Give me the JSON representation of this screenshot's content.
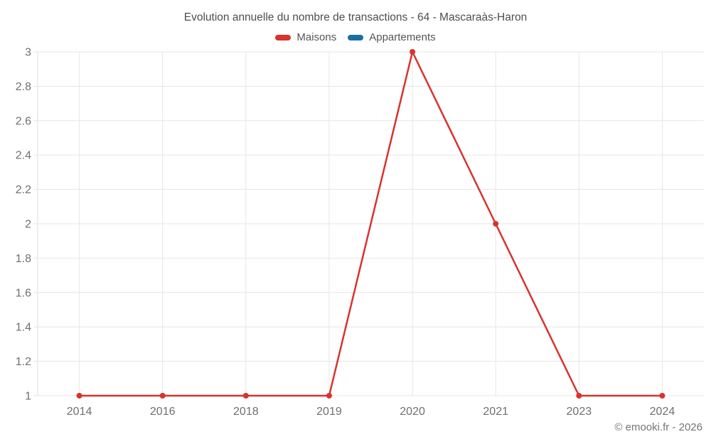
{
  "title": "Evolution annuelle du nombre de transactions - 64 - Mascaraàs-Haron",
  "legend": {
    "items": [
      {
        "label": "Maisons",
        "color": "#d8332e"
      },
      {
        "label": "Appartements",
        "color": "#1a6fa3"
      }
    ]
  },
  "footer": {
    "credit": "© emooki.fr - 2026"
  },
  "colors": {
    "grid": "#e6e6e6",
    "axis": "#dcdcdc",
    "tick_label": "#6f6f6f"
  },
  "chart_data": {
    "type": "line",
    "title": "Evolution annuelle du nombre de transactions - 64 - Mascaraàs-Haron",
    "categories": [
      "2014",
      "2016",
      "2018",
      "2019",
      "2020",
      "2021",
      "2023",
      "2024"
    ],
    "series": [
      {
        "name": "Maisons",
        "color": "#d8332e",
        "values": [
          1,
          1,
          1,
          1,
          3,
          2,
          1,
          1
        ]
      },
      {
        "name": "Appartements",
        "color": "#1a6fa3",
        "values": []
      }
    ],
    "xlabel": "",
    "ylabel": "",
    "ylim": [
      1,
      3
    ],
    "ytick_step": 0.2,
    "ytick_labels": [
      "1",
      "1.2",
      "1.4",
      "1.6",
      "1.8",
      "2",
      "2.2",
      "2.4",
      "2.6",
      "2.8",
      "3"
    ],
    "grid": true,
    "legend_position": "top",
    "marker": "circle"
  }
}
